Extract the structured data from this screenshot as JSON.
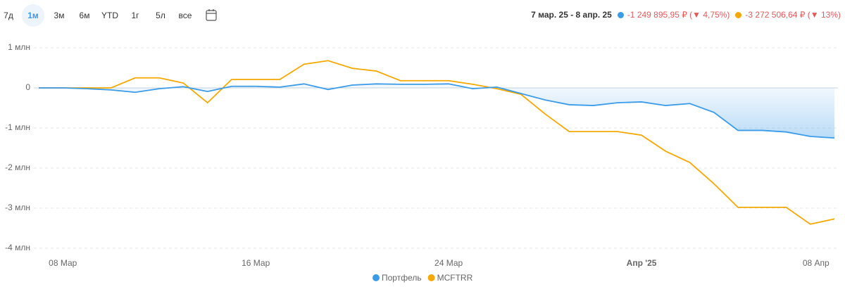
{
  "header": {
    "periods": [
      "7д",
      "1м",
      "3м",
      "6м",
      "YTD",
      "1г",
      "5л",
      "все"
    ],
    "active_period": 1,
    "date_range": "7 мар. 25 - 8 апр. 25",
    "summaries": [
      {
        "color": "#3a9be8",
        "text": "-1 249 895,95 ₽ (▼ 4,75%)"
      },
      {
        "color": "#f5a800",
        "text": "-3 272 506,64 ₽ (▼ 13%)"
      }
    ]
  },
  "chart_data": {
    "type": "line",
    "categories": [
      null,
      "08 Мар",
      null,
      null,
      null,
      null,
      null,
      null,
      null,
      "16 Мар",
      null,
      null,
      null,
      null,
      null,
      null,
      null,
      "24 Мар",
      null,
      null,
      null,
      null,
      null,
      null,
      null,
      "Апр '25",
      null,
      null,
      null,
      null,
      null,
      null,
      "08 Апр",
      null
    ],
    "series": [
      {
        "name": "Портфель",
        "color": "#3a9be8",
        "values": [
          0,
          0,
          -0.02,
          -0.05,
          -0.11,
          -0.02,
          0.03,
          -0.09,
          0.04,
          0.04,
          0.02,
          0.1,
          -0.04,
          0.07,
          0.1,
          0.09,
          0.09,
          0.1,
          -0.02,
          0.02,
          -0.14,
          -0.3,
          -0.42,
          -0.44,
          -0.37,
          -0.35,
          -0.44,
          -0.39,
          -0.61,
          -1.06,
          -1.06,
          -1.1,
          -1.21,
          -1.25
        ]
      },
      {
        "name": "MCFTRR",
        "color": "#f5a800",
        "values": [
          0,
          0,
          0,
          0,
          0.25,
          0.25,
          0.12,
          -0.37,
          0.21,
          0.21,
          0.21,
          0.59,
          0.68,
          0.49,
          0.42,
          0.18,
          0.18,
          0.18,
          0.09,
          -0.02,
          -0.16,
          -0.65,
          -1.09,
          -1.09,
          -1.09,
          -1.18,
          -1.58,
          -1.86,
          -2.39,
          -2.98,
          -2.98,
          -2.98,
          -3.4,
          -3.27
        ]
      }
    ],
    "ylim": [
      -4.3,
      1.2
    ],
    "yticks": [
      {
        "value": 1,
        "label": "1 млн"
      },
      0,
      {
        "value": -1,
        "label": "-1 млн"
      },
      {
        "value": -2,
        "label": "-2 млн"
      },
      {
        "value": -3,
        "label": "-3 млн"
      },
      {
        "value": -4,
        "label": "-4 млн"
      }
    ],
    "grid": true
  }
}
